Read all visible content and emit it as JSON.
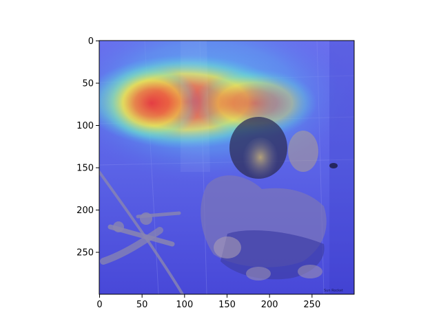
{
  "chart_data": {
    "type": "heatmap",
    "title": "",
    "xlabel": "",
    "ylabel": "",
    "xlim": [
      0,
      300
    ],
    "ylim": [
      300,
      0
    ],
    "y_inverted": true,
    "grid": false,
    "legend": "none",
    "colormap": "jet",
    "x_ticks": [
      0,
      50,
      100,
      150,
      200,
      250
    ],
    "y_ticks": [
      0,
      50,
      100,
      150,
      200,
      250
    ],
    "x_tick_labels": [
      "0",
      "50",
      "100",
      "150",
      "200",
      "250"
    ],
    "y_tick_labels": [
      "0",
      "50",
      "100",
      "150",
      "200",
      "250"
    ],
    "background_image": "photograph of a girl crouching in a shower wearing headphones",
    "image_caption": "Sun Rocket",
    "heat_peaks": [
      {
        "x": 105,
        "y": 75,
        "intensity": 1.0
      },
      {
        "x": 185,
        "y": 80,
        "intensity": 0.75
      },
      {
        "x": 60,
        "y": 75,
        "intensity": 0.6
      }
    ]
  }
}
